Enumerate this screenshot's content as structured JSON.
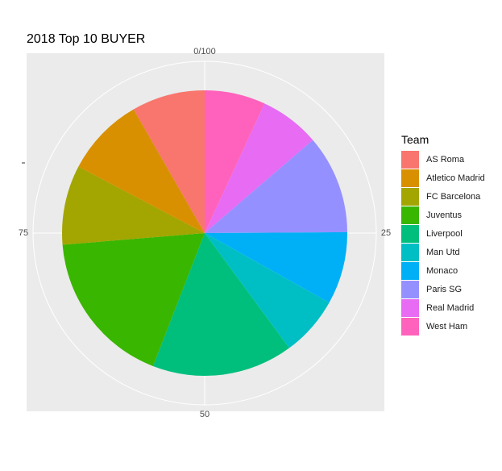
{
  "chart_data": {
    "type": "pie",
    "title": "2018 Top 10 BUYER",
    "legend_title": "Team",
    "legend_position": "right",
    "categories": [
      "AS Roma",
      "Atletico Madrid",
      "FC Barcelona",
      "Juventus",
      "Liverpool",
      "Man Utd",
      "Monaco",
      "Paris SG",
      "Real Madrid",
      "West Ham"
    ],
    "values": [
      8.3,
      9.0,
      9.0,
      17.8,
      16.0,
      6.8,
      8.2,
      11.2,
      6.8,
      6.9
    ],
    "colors": [
      "#F8766D",
      "#D89000",
      "#A3A500",
      "#39B600",
      "#00BF7D",
      "#00BFC4",
      "#00B0F6",
      "#9590FF",
      "#E76BF3",
      "#FF62BC"
    ],
    "slice_order_clockwise_from_top": [
      "West Ham",
      "Real Madrid",
      "Paris SG",
      "Monaco",
      "Man Utd",
      "Liverpool",
      "Juventus",
      "FC Barcelona",
      "Atletico Madrid",
      "AS Roma"
    ],
    "axis_scale": [
      0,
      100
    ],
    "ticks": [
      {
        "value": 0,
        "label": "0/100"
      },
      {
        "value": 25,
        "label": "25"
      },
      {
        "value": 50,
        "label": "50"
      },
      {
        "value": 75,
        "label": "75"
      }
    ],
    "grid": true,
    "panel_background": "#EBEBEB",
    "grid_color": "#FFFFFF"
  }
}
